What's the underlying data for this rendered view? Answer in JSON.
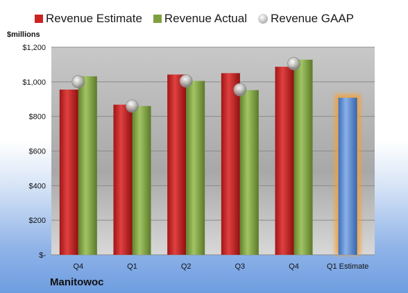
{
  "chart_data": {
    "type": "bar",
    "categories": [
      "Q4",
      "Q1",
      "Q2",
      "Q3",
      "Q4",
      "Q1 Estimate"
    ],
    "series": [
      {
        "name": "Revenue Estimate",
        "values": [
          955,
          868,
          1042,
          1050,
          1087,
          null
        ],
        "color": "#cc2222"
      },
      {
        "name": "Revenue Actual",
        "values": [
          1032,
          860,
          1005,
          952,
          1128,
          null
        ],
        "color": "#7fa040"
      },
      {
        "name": "Revenue GAAP",
        "values": [
          1000,
          860,
          1005,
          955,
          1105,
          null
        ],
        "color": "#b8b8b8"
      },
      {
        "name": "",
        "values": [
          null,
          null,
          null,
          null,
          null,
          908
        ],
        "color": "#5b8fd6"
      }
    ],
    "ylabel": "$millions",
    "ylim": [
      0,
      1200
    ],
    "yticks": [
      0,
      200,
      400,
      600,
      800,
      1000,
      1200
    ],
    "ytick_labels": [
      "$-",
      "$200",
      "$400",
      "$600",
      "$800",
      "$1,000",
      "$1,200"
    ],
    "grid": true,
    "legend_position": "top",
    "highlight_color": "#f5a030"
  },
  "legend": {
    "estimate": "Revenue Estimate",
    "actual": "Revenue Actual",
    "gaap": "Revenue GAAP"
  },
  "unit_label": "$millions",
  "company": "Manitowoc"
}
